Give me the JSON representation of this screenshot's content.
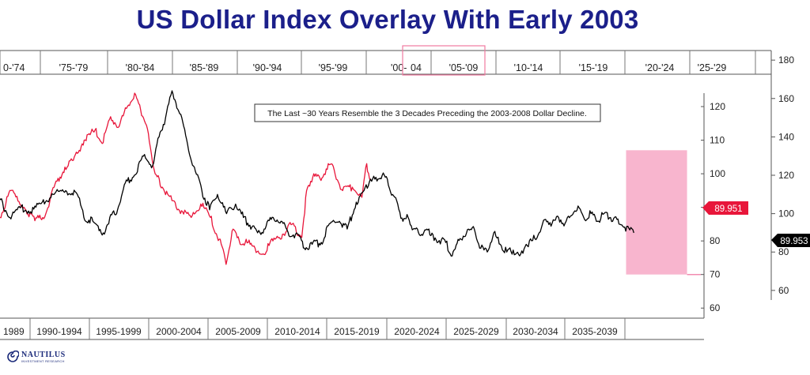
{
  "title": "US Dollar Index Overlay With Early 2003",
  "logo": {
    "name": "NAUTILUS",
    "sub": "INVESTMENT RESEARCH"
  },
  "chart_data": {
    "type": "line",
    "annotation": "The Last ~30 Years Resemble the 3 Decades Preceding the 2003-2008 Dollar Decline.",
    "top_axis_periods": [
      "0-'74",
      "'75-'79",
      "'80-'84",
      "'85-'89",
      "'90-'94",
      "'95-'99",
      "'00-",
      "04",
      "'05-'09",
      "'10-'14",
      "'15-'19",
      "'20-'24",
      "'25-'29"
    ],
    "bottom_axis_periods": [
      "1989",
      "1990-1994",
      "1995-1999",
      "2000-2004",
      "2005-2009",
      "2010-2014",
      "2015-2019",
      "2020-2024",
      "2025-2029",
      "2030-2034",
      "2035-2039"
    ],
    "inner_right_axis": {
      "ticks": [
        60,
        70,
        80,
        90,
        100,
        110,
        120
      ],
      "ylim": [
        57,
        124
      ]
    },
    "outer_right_axis": {
      "ticks": [
        60,
        80,
        100,
        120,
        140,
        160,
        180
      ],
      "ylim": [
        55,
        185
      ]
    },
    "last_value_labels": {
      "red": "89.951",
      "black": "89.953"
    },
    "shaded_decline_window": {
      "x_start": 2020.7,
      "x_end": 2025.4,
      "y_top": 107,
      "y_bottom": 70
    },
    "reference_line_value": 70,
    "series": [
      {
        "color": "#e8163a",
        "axis": "inner-right, bottom timeline",
        "x": [
          1985.1,
          1986.0,
          1987.0,
          1987.8,
          1988.6,
          1989.5,
          1990.4,
          1991.5,
          1992.4,
          1993.3,
          1994.0,
          1994.9,
          1995.6,
          1996.5,
          1997.4,
          1998.0,
          1998.7,
          1999.4,
          2000.1,
          2000.7,
          2001.2,
          2001.6,
          2002.0,
          2002.4,
          2003.0,
          2003.8,
          2004.6,
          2005.4,
          2006.2,
          2007.0,
          2007.9,
          2008.3,
          2008.8,
          2009.4,
          2010.3,
          2011.3,
          2012.2,
          2013.0,
          2013.8,
          2014.6,
          2015.0,
          2015.6,
          2016.2,
          2016.8,
          2017.3,
          2018.0,
          2018.8,
          2019.6,
          2020.0,
          2020.3
        ],
        "values": [
          88,
          98,
          104,
          92,
          95,
          87,
          95,
          90,
          86,
          88,
          96,
          102,
          104,
          110,
          113,
          109,
          117,
          114,
          120,
          124,
          119,
          115,
          108,
          100,
          96,
          92,
          89,
          87,
          91,
          87,
          79,
          73,
          83,
          80,
          79,
          76,
          80,
          82,
          85,
          81,
          95,
          100,
          98,
          103,
          101,
          95,
          96,
          93,
          103,
          98
        ]
      },
      {
        "color": "#000000",
        "axis": "outer-right, top timeline",
        "x": [
          1970.0,
          1970.7,
          1971.5,
          1972.4,
          1973.2,
          1974.0,
          1974.8,
          1975.7,
          1976.6,
          1977.5,
          1978.4,
          1978.9,
          1979.6,
          1980.4,
          1980.9,
          1981.5,
          1982.1,
          1982.8,
          1983.5,
          1984.2,
          1984.7,
          1985.2,
          1985.7,
          1986.3,
          1986.9,
          1987.5,
          1988.0,
          1988.6,
          1989.2,
          1989.9,
          1990.6,
          1991.2,
          1991.7,
          1992.3,
          1992.8,
          1993.5,
          1994.1,
          1994.8,
          1995.3,
          1995.9,
          1996.5,
          1997.2,
          1997.9,
          1998.6,
          1999.2,
          1999.9,
          2000.5,
          2001.0,
          2001.5,
          2001.9,
          2002.3,
          2002.7,
          2003.1,
          2003.5,
          2003.9,
          2004.3,
          2004.7,
          2005.1,
          2005.5,
          2005.9,
          2006.3,
          2006.8,
          2007.3,
          2007.9,
          2008.4,
          2009.0,
          2009.5,
          2010.0,
          2010.5,
          2011.0,
          2011.5,
          2012.0,
          2012.5,
          2013.0,
          2013.5,
          2014.0,
          2014.5,
          2015.0,
          2015.5,
          2016.0,
          2016.5,
          2017.0,
          2017.5,
          2018.0,
          2018.5,
          2019.0,
          2019.5,
          2020.0,
          2020.6,
          2021.3
        ],
        "values": [
          120,
          116,
          103,
          108,
          98,
          103,
          101,
          106,
          110,
          112,
          110,
          98,
          96,
          90,
          98,
          102,
          116,
          120,
          130,
          125,
          140,
          150,
          164,
          152,
          136,
          122,
          112,
          102,
          110,
          100,
          105,
          98,
          94,
          90,
          92,
          98,
          96,
          88,
          90,
          82,
          84,
          85,
          95,
          96,
          92,
          106,
          112,
          118,
          117,
          120,
          118,
          110,
          105,
          96,
          98,
          92,
          90,
          90,
          92,
          86,
          86,
          85,
          78,
          87,
          90,
          92,
          82,
          80,
          90,
          84,
          80,
          81,
          78,
          84,
          86,
          90,
          97,
          95,
          98,
          95,
          99,
          104,
          97,
          100,
          96,
          100,
          98,
          97,
          93,
          90
        ]
      }
    ]
  }
}
